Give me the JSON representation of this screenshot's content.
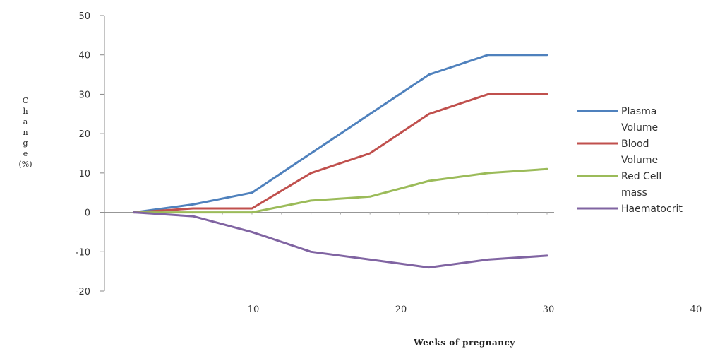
{
  "chart_data": {
    "type": "line",
    "title": "",
    "xlabel": "Weeks of pregnancy",
    "ylabel": "Change (%)",
    "ylabel_chars": [
      "C",
      "h",
      "a",
      "n",
      "g",
      "e",
      "(%)"
    ],
    "xlim": [
      0,
      40
    ],
    "ylim": [
      -20,
      50
    ],
    "x_ticks": [
      "10",
      "20",
      "30",
      "40"
    ],
    "x_tick_values": [
      10,
      20,
      30,
      40
    ],
    "y_ticks": [
      "50",
      "40",
      "30",
      "20",
      "10",
      "0",
      "-10",
      "-20"
    ],
    "y_tick_values": [
      50,
      40,
      30,
      20,
      10,
      0,
      -10,
      -20
    ],
    "grid": false,
    "legend_position": "right",
    "series": [
      {
        "name": "Plasma Volume",
        "legend_lines": [
          "Plasma",
          "Volume"
        ],
        "color": "#4f81bd",
        "x": [
          2,
          6,
          10,
          14,
          18,
          22,
          26,
          30
        ],
        "y": [
          0,
          2,
          5,
          15,
          25,
          35,
          40,
          40
        ]
      },
      {
        "name": "Blood Volume",
        "legend_lines": [
          "Blood",
          "Volume"
        ],
        "color": "#c0504d",
        "x": [
          2,
          6,
          10,
          14,
          18,
          22,
          26,
          30
        ],
        "y": [
          0,
          1,
          1,
          10,
          15,
          25,
          30,
          30
        ]
      },
      {
        "name": "Red Cell mass",
        "legend_lines": [
          "Red Cell",
          "mass"
        ],
        "color": "#9bbb59",
        "x": [
          2,
          6,
          10,
          14,
          18,
          22,
          26,
          30
        ],
        "y": [
          0,
          0,
          0,
          3,
          4,
          8,
          10,
          11
        ]
      },
      {
        "name": "Haematocrit",
        "legend_lines": [
          "Haematocrit"
        ],
        "color": "#8064a2",
        "x": [
          2,
          6,
          10,
          14,
          18,
          22,
          26,
          30
        ],
        "y": [
          0,
          -1,
          -5,
          -10,
          -12,
          -14,
          -12,
          -11
        ]
      }
    ]
  }
}
